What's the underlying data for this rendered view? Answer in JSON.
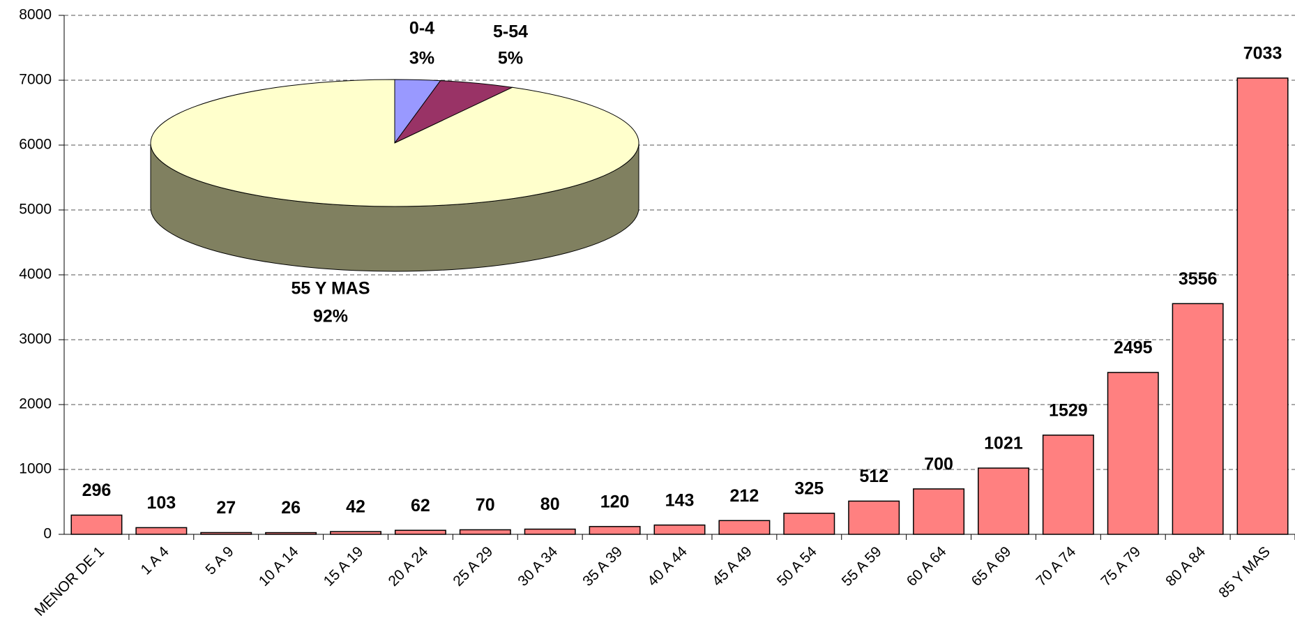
{
  "chart_data": [
    {
      "type": "bar",
      "categories": [
        "MENOR DE 1",
        "1 A 4",
        "5 A 9",
        "10 A 14",
        "15 A 19",
        "20 A 24",
        "25 A 29",
        "30 A 34",
        "35 A 39",
        "40 A 44",
        "45 A 49",
        "50 A 54",
        "55 A 59",
        "60 A 64",
        "65 A 69",
        "70 A 74",
        "75 A 79",
        "80 A 84",
        "85 Y MAS"
      ],
      "values": [
        296,
        103,
        27,
        26,
        42,
        62,
        70,
        80,
        120,
        143,
        212,
        325,
        512,
        700,
        1021,
        1529,
        2495,
        3556,
        7033
      ],
      "color": "#ff8080",
      "ylim": [
        0,
        8000
      ],
      "yticks": [
        0,
        1000,
        2000,
        3000,
        4000,
        5000,
        6000,
        7000,
        8000
      ],
      "grid": true
    },
    {
      "type": "pie",
      "categories": [
        "0-4",
        "5-54",
        "55 Y MAS"
      ],
      "values": [
        3,
        5,
        92
      ],
      "value_labels": [
        "3%",
        "5%",
        "92%"
      ],
      "colors": [
        "#9999ff",
        "#993366",
        "#ffffcc"
      ]
    }
  ]
}
